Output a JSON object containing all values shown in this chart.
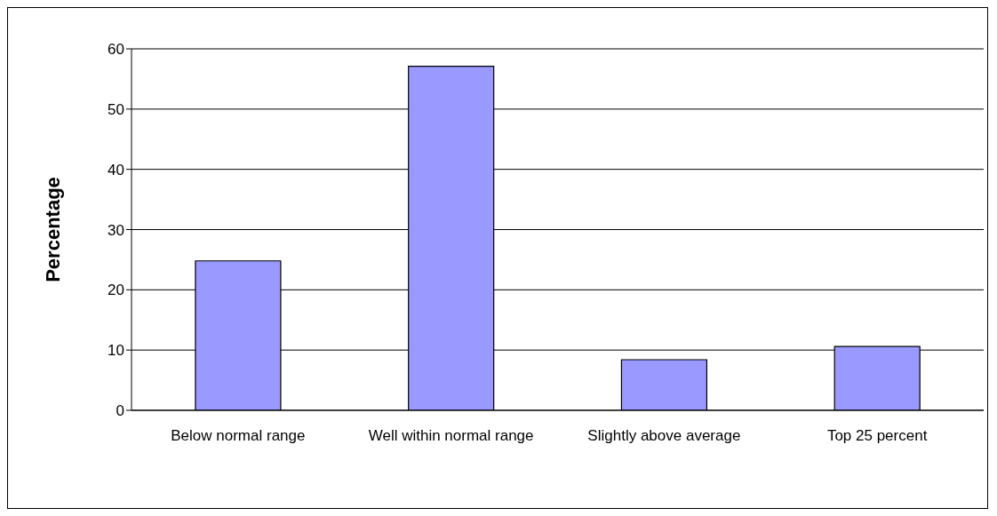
{
  "chart_data": {
    "type": "bar",
    "ylabel": "Percentage",
    "categories": [
      "Below normal range",
      "Well within normal range",
      "Slightly above average",
      "Top 25 percent"
    ],
    "values": [
      24.8,
      57.1,
      8.4,
      10.6
    ],
    "color": "#9999ff",
    "ylim": [
      0,
      60
    ],
    "yticks": [
      0,
      10,
      20,
      30,
      40,
      50,
      60
    ],
    "grid": "y"
  }
}
